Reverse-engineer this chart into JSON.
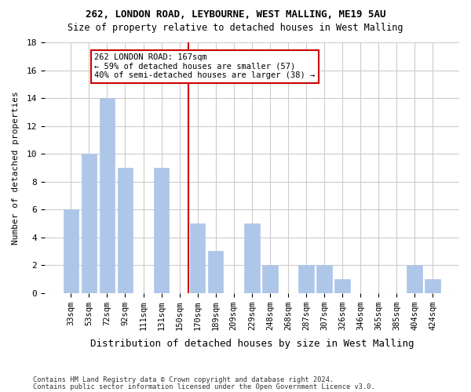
{
  "title1": "262, LONDON ROAD, LEYBOURNE, WEST MALLING, ME19 5AU",
  "title2": "Size of property relative to detached houses in West Malling",
  "xlabel": "Distribution of detached houses by size in West Malling",
  "ylabel": "Number of detached properties",
  "footnote1": "Contains HM Land Registry data © Crown copyright and database right 2024.",
  "footnote2": "Contains public sector information licensed under the Open Government Licence v3.0.",
  "categories": [
    "33sqm",
    "53sqm",
    "72sqm",
    "92sqm",
    "111sqm",
    "131sqm",
    "150sqm",
    "170sqm",
    "189sqm",
    "209sqm",
    "229sqm",
    "248sqm",
    "268sqm",
    "287sqm",
    "307sqm",
    "326sqm",
    "346sqm",
    "365sqm",
    "385sqm",
    "404sqm",
    "424sqm"
  ],
  "values": [
    6,
    10,
    14,
    9,
    0,
    9,
    0,
    5,
    3,
    0,
    5,
    2,
    0,
    2,
    2,
    1,
    0,
    0,
    0,
    2,
    1
  ],
  "bar_color": "#aec6e8",
  "bar_edge_color": "#aec6e8",
  "annotation_line1": "262 LONDON ROAD: 167sqm",
  "annotation_line2": "← 59% of detached houses are smaller (57)",
  "annotation_line3": "40% of semi-detached houses are larger (38) →",
  "annotation_box_color": "#ffffff",
  "annotation_border_color": "#cc0000",
  "vline_color": "#cc0000",
  "vline_x_index": 7,
  "ylim": [
    0,
    18
  ],
  "yticks": [
    0,
    2,
    4,
    6,
    8,
    10,
    12,
    14,
    16,
    18
  ],
  "background_color": "#ffffff",
  "grid_color": "#cccccc"
}
